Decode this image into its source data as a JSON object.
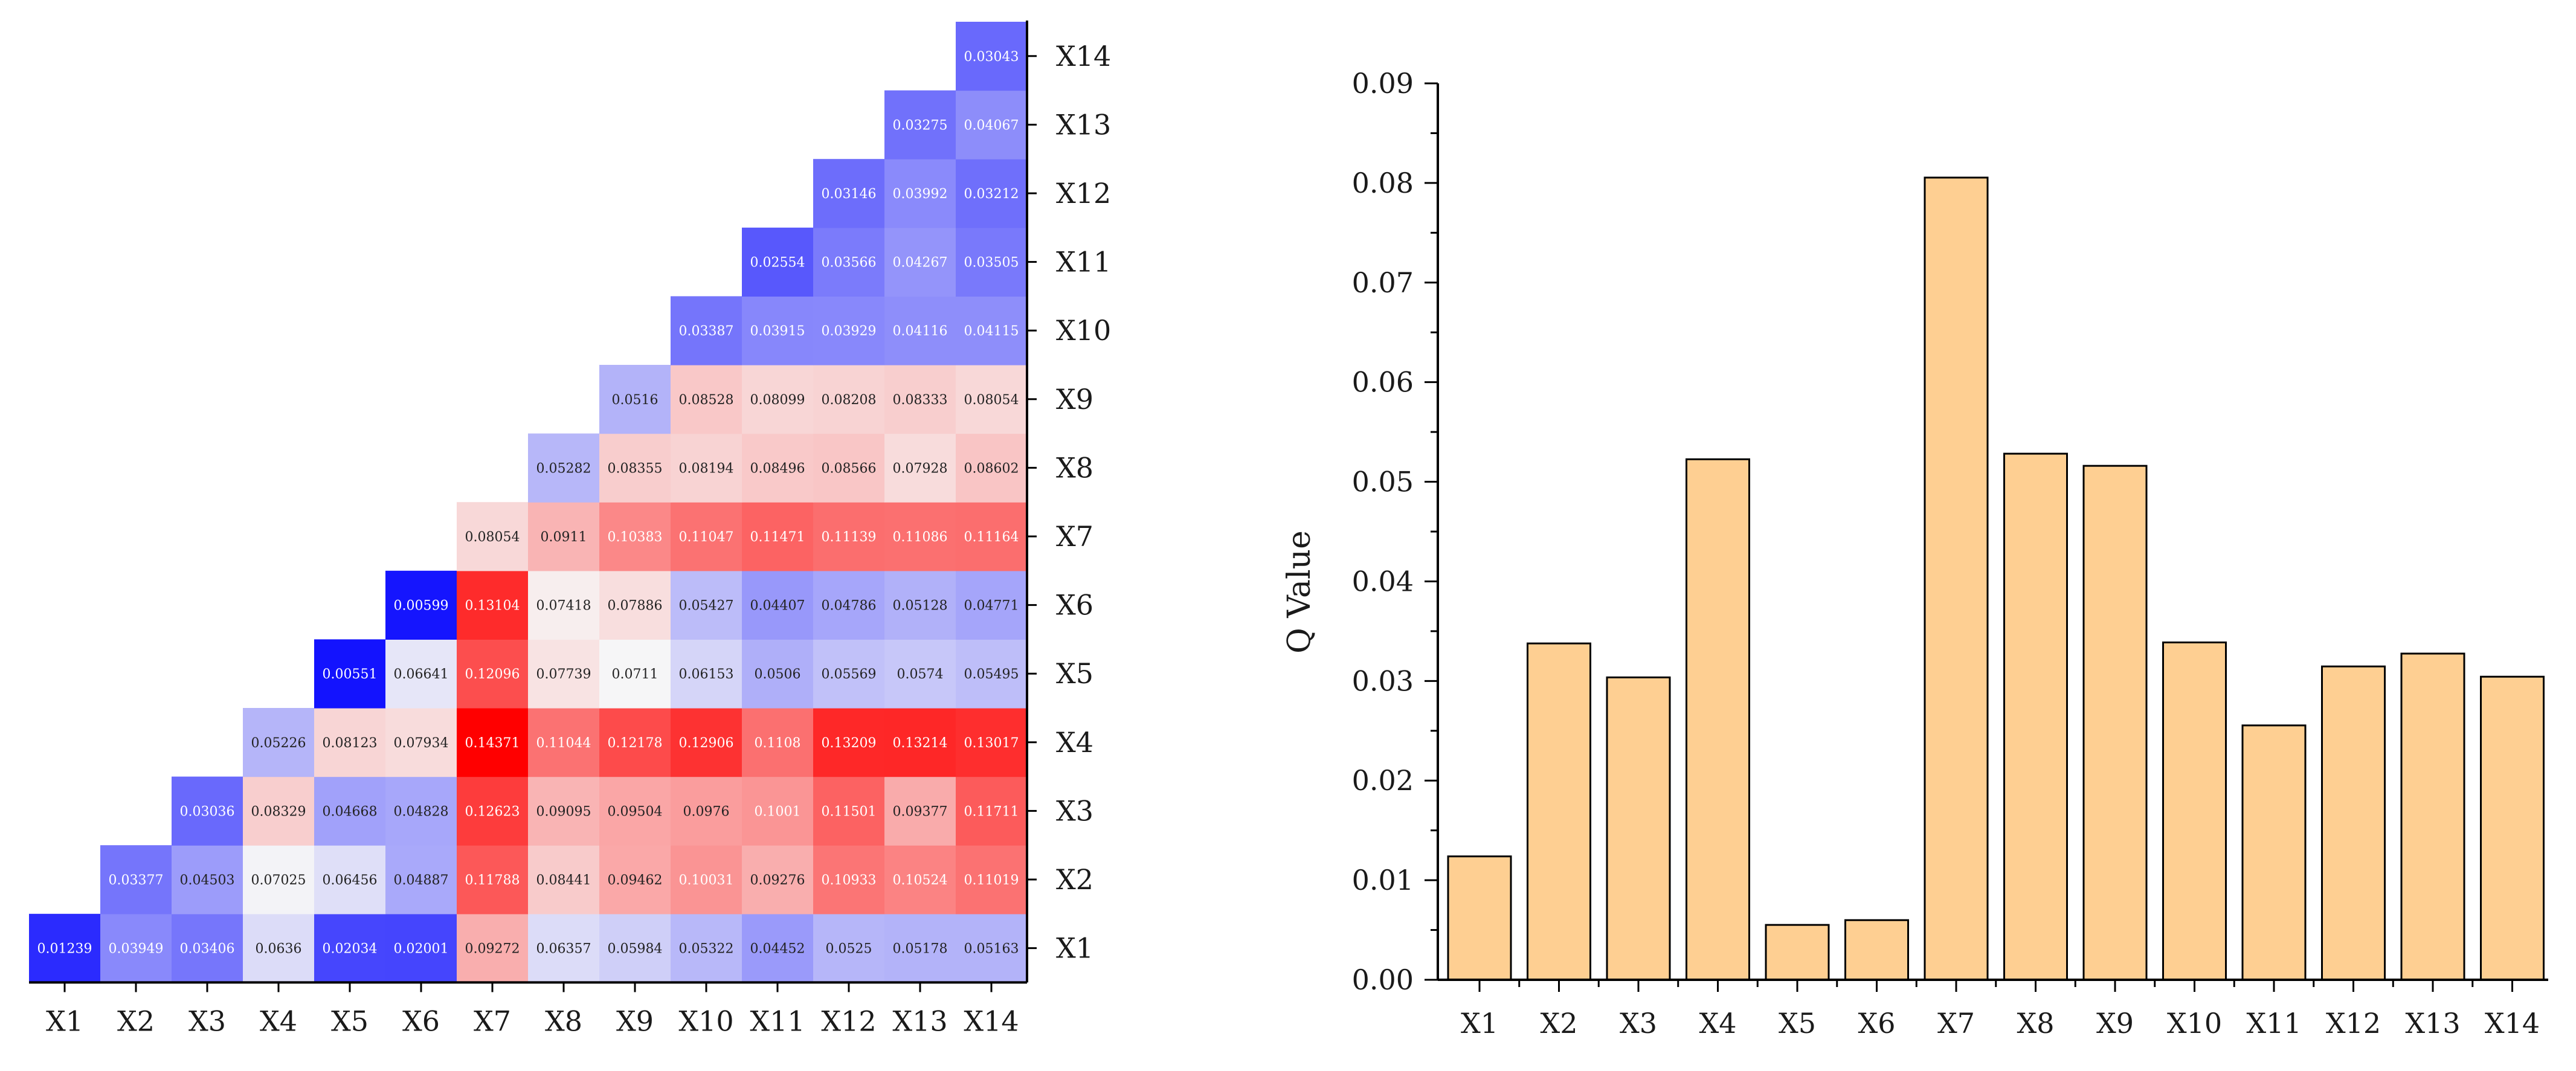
{
  "colors": {
    "neg_extreme": "#0000ff",
    "neutral": "#f7f7f7",
    "pos_extreme": "#ff0000",
    "bar_fill": "#fecf92",
    "bar_stroke": "#000000",
    "axis": "#000000"
  },
  "chart_data": [
    {
      "type": "heatmap",
      "title": "",
      "layout": "lower-triangular",
      "variables": [
        "X1",
        "X2",
        "X3",
        "X4",
        "X5",
        "X6",
        "X7",
        "X8",
        "X9",
        "X10",
        "X11",
        "X12",
        "X13",
        "X14"
      ],
      "color_scale": {
        "min": 0.0,
        "center": 0.0714,
        "max": 0.1437
      },
      "rows": [
        {
          "label": "X1",
          "values": [
            "0.01239",
            "0.03949",
            "0.03406",
            "0.0636",
            "0.02034",
            "0.02001",
            "0.09272",
            "0.06357",
            "0.05984",
            "0.05322",
            "0.04452",
            "0.0525",
            "0.05178",
            "0.05163"
          ]
        },
        {
          "label": "X2",
          "values": [
            "0.03377",
            "0.04503",
            "0.07025",
            "0.06456",
            "0.04887",
            "0.11788",
            "0.08441",
            "0.09462",
            "0.10031",
            "0.09276",
            "0.10933",
            "0.10524",
            "0.11019"
          ]
        },
        {
          "label": "X3",
          "values": [
            "0.03036",
            "0.08329",
            "0.04668",
            "0.04828",
            "0.12623",
            "0.09095",
            "0.09504",
            "0.0976",
            "0.1001",
            "0.11501",
            "0.09377",
            "0.11711"
          ]
        },
        {
          "label": "X4",
          "values": [
            "0.05226",
            "0.08123",
            "0.07934",
            "0.14371",
            "0.11044",
            "0.12178",
            "0.12906",
            "0.1108",
            "0.13209",
            "0.13214",
            "0.13017"
          ]
        },
        {
          "label": "X5",
          "values": [
            "0.00551",
            "0.06641",
            "0.12096",
            "0.07739",
            "0.0711",
            "0.06153",
            "0.0506",
            "0.05569",
            "0.0574",
            "0.05495"
          ]
        },
        {
          "label": "X6",
          "values": [
            "0.00599",
            "0.13104",
            "0.07418",
            "0.07886",
            "0.05427",
            "0.04407",
            "0.04786",
            "0.05128",
            "0.04771"
          ]
        },
        {
          "label": "X7",
          "values": [
            "0.08054",
            "0.0911",
            "0.10383",
            "0.11047",
            "0.11471",
            "0.11139",
            "0.11086",
            "0.11164"
          ]
        },
        {
          "label": "X8",
          "values": [
            "0.05282",
            "0.08355",
            "0.08194",
            "0.08496",
            "0.08566",
            "0.07928",
            "0.08602"
          ]
        },
        {
          "label": "X9",
          "values": [
            "0.0516",
            "0.08528",
            "0.08099",
            "0.08208",
            "0.08333",
            "0.08054"
          ]
        },
        {
          "label": "X10",
          "values": [
            "0.03387",
            "0.03915",
            "0.03929",
            "0.04116",
            "0.04115"
          ]
        },
        {
          "label": "X11",
          "values": [
            "0.02554",
            "0.03566",
            "0.04267",
            "0.03505"
          ]
        },
        {
          "label": "X12",
          "values": [
            "0.03146",
            "0.03992",
            "0.03212"
          ]
        },
        {
          "label": "X13",
          "values": [
            "0.03275",
            "0.04067"
          ]
        },
        {
          "label": "X14",
          "values": [
            "0.03043"
          ]
        }
      ],
      "x_tick_labels": [
        "X1",
        "X2",
        "X3",
        "X4",
        "X5",
        "X6",
        "X7",
        "X8",
        "X9",
        "X10",
        "X11",
        "X12",
        "X13",
        "X14"
      ],
      "y_tick_labels": [
        "X1",
        "X2",
        "X3",
        "X4",
        "X5",
        "X6",
        "X7",
        "X8",
        "X9",
        "X10",
        "X11",
        "X12",
        "X13",
        "X14"
      ],
      "y_axis_side": "right"
    },
    {
      "type": "bar",
      "title": "",
      "xlabel": "",
      "ylabel": "Q Value",
      "categories": [
        "X1",
        "X2",
        "X3",
        "X4",
        "X5",
        "X6",
        "X7",
        "X8",
        "X9",
        "X10",
        "X11",
        "X12",
        "X13",
        "X14"
      ],
      "values": [
        0.01239,
        0.03377,
        0.03036,
        0.05226,
        0.00551,
        0.00599,
        0.08054,
        0.05282,
        0.0516,
        0.03387,
        0.02554,
        0.03146,
        0.03275,
        0.03043
      ],
      "ylim": [
        0,
        0.09
      ],
      "yticks": [
        "0.00",
        "0.01",
        "0.02",
        "0.03",
        "0.04",
        "0.05",
        "0.06",
        "0.07",
        "0.08",
        "0.09"
      ],
      "grid": false
    }
  ]
}
